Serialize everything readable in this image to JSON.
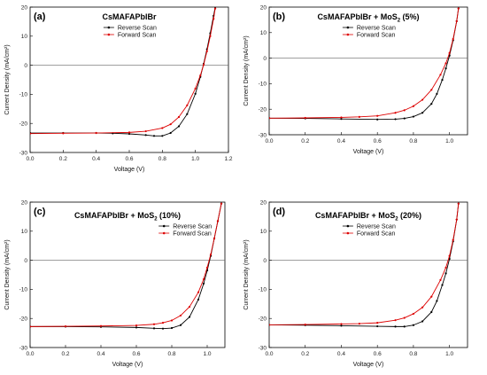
{
  "chart_data": [
    {
      "type": "line",
      "panel_label": "(a)",
      "title": "CsMAFAPbIBr",
      "title_sub": "",
      "title_suffix": "",
      "xlabel": "Voltage (V)",
      "ylabel": "Current Density (mA/cm²)",
      "xlim": [
        0.0,
        1.2
      ],
      "ylim": [
        -30,
        20
      ],
      "xticks": [
        "0.0",
        "0.2",
        "0.4",
        "0.6",
        "0.8",
        "1.0",
        "1.2"
      ],
      "yticks": [
        "-30",
        "-20",
        "-10",
        "0",
        "10",
        "20"
      ],
      "zero_line": true,
      "legend_position": "top-center",
      "series": [
        {
          "name": "Reverse Scan",
          "color": "#000000",
          "x": [
            0.0,
            0.2,
            0.4,
            0.5,
            0.6,
            0.7,
            0.75,
            0.8,
            0.85,
            0.9,
            0.95,
            1.0,
            1.03,
            1.05,
            1.07,
            1.09,
            1.11,
            1.12
          ],
          "y": [
            -23.3,
            -23.3,
            -23.3,
            -23.4,
            -23.6,
            -24.0,
            -24.3,
            -24.3,
            -23.3,
            -21.0,
            -16.8,
            -9.8,
            -4.0,
            0.5,
            5.5,
            11.0,
            17.0,
            20.0
          ]
        },
        {
          "name": "Forward Scan",
          "color": "#dd0000",
          "x": [
            0.0,
            0.2,
            0.4,
            0.6,
            0.7,
            0.8,
            0.85,
            0.9,
            0.95,
            1.0,
            1.03,
            1.05,
            1.07,
            1.09,
            1.11,
            1.12
          ],
          "y": [
            -23.5,
            -23.4,
            -23.3,
            -23.1,
            -22.7,
            -21.6,
            -20.3,
            -17.8,
            -13.8,
            -8.0,
            -3.5,
            0.2,
            4.8,
            10.0,
            16.0,
            19.5
          ]
        }
      ]
    },
    {
      "type": "line",
      "panel_label": "(b)",
      "title": "CsMAFAPbIBr + MoS",
      "title_sub": "2",
      "title_suffix": " (5%)",
      "xlabel": "Voltage (V)",
      "ylabel": "Current Density (mA/cm²)",
      "xlim": [
        0.0,
        1.1
      ],
      "ylim": [
        -30,
        20
      ],
      "xticks": [
        "0.0",
        "0.2",
        "0.4",
        "0.6",
        "0.8",
        "1.0"
      ],
      "yticks": [
        "-30",
        "-20",
        "-10",
        "0",
        "10",
        "20"
      ],
      "zero_line": true,
      "legend_position": "top-center",
      "series": [
        {
          "name": "Reverse Scan",
          "color": "#000000",
          "x": [
            0.0,
            0.2,
            0.4,
            0.6,
            0.7,
            0.75,
            0.8,
            0.85,
            0.9,
            0.93,
            0.96,
            0.98,
            1.0,
            1.02,
            1.04,
            1.05
          ],
          "y": [
            -23.5,
            -23.6,
            -23.8,
            -24.0,
            -23.9,
            -23.6,
            -22.9,
            -21.4,
            -17.9,
            -14.0,
            -8.5,
            -4.0,
            1.0,
            7.0,
            14.5,
            19.5
          ]
        },
        {
          "name": "Forward Scan",
          "color": "#dd0000",
          "x": [
            0.0,
            0.2,
            0.4,
            0.5,
            0.6,
            0.7,
            0.75,
            0.8,
            0.85,
            0.9,
            0.95,
            0.98,
            1.0,
            1.02,
            1.04,
            1.05
          ],
          "y": [
            -23.5,
            -23.4,
            -23.2,
            -23.0,
            -22.6,
            -21.4,
            -20.4,
            -18.8,
            -16.3,
            -12.4,
            -6.5,
            -2.0,
            2.0,
            7.5,
            14.5,
            19.5
          ]
        }
      ]
    },
    {
      "type": "line",
      "panel_label": "(c)",
      "title": "CsMAFAPbIBr + MoS",
      "title_sub": "2",
      "title_suffix": " (10%)",
      "xlabel": "Voltage (V)",
      "ylabel": "Current Density (mA/cm²)",
      "xlim": [
        0.0,
        1.1
      ],
      "ylim": [
        -30,
        20
      ],
      "xticks": [
        "0.0",
        "0.2",
        "0.4",
        "0.6",
        "0.8",
        "1.0"
      ],
      "yticks": [
        "-30",
        "-20",
        "-10",
        "0",
        "10",
        "20"
      ],
      "zero_line": true,
      "legend_position": "top-right",
      "series": [
        {
          "name": "Reverse Scan",
          "color": "#000000",
          "x": [
            0.0,
            0.2,
            0.4,
            0.6,
            0.7,
            0.75,
            0.8,
            0.85,
            0.9,
            0.95,
            0.98,
            1.0,
            1.02,
            1.04,
            1.06,
            1.08
          ],
          "y": [
            -22.8,
            -22.8,
            -22.9,
            -23.1,
            -23.4,
            -23.5,
            -23.3,
            -22.3,
            -19.5,
            -13.5,
            -8.0,
            -3.5,
            1.5,
            7.5,
            13.5,
            19.5
          ]
        },
        {
          "name": "Forward Scan",
          "color": "#dd0000",
          "x": [
            0.0,
            0.2,
            0.4,
            0.6,
            0.7,
            0.75,
            0.8,
            0.85,
            0.9,
            0.95,
            0.98,
            1.0,
            1.02,
            1.04,
            1.06,
            1.08
          ],
          "y": [
            -22.8,
            -22.7,
            -22.6,
            -22.4,
            -22.0,
            -21.5,
            -20.7,
            -19.0,
            -16.0,
            -11.0,
            -6.5,
            -2.5,
            2.0,
            7.5,
            13.5,
            19.5
          ]
        }
      ]
    },
    {
      "type": "line",
      "panel_label": "(d)",
      "title": "CsMAFAPbIBr + MoS",
      "title_sub": "2",
      "title_suffix": " (20%)",
      "xlabel": "Voltage (V)",
      "ylabel": "Current Density (mA/cm²)",
      "xlim": [
        0.0,
        1.1
      ],
      "ylim": [
        -30,
        20
      ],
      "xticks": [
        "0.0",
        "0.2",
        "0.4",
        "0.6",
        "0.8",
        "1.0"
      ],
      "yticks": [
        "-30",
        "-20",
        "-10",
        "0",
        "10",
        "20"
      ],
      "zero_line": true,
      "legend_position": "top-center",
      "series": [
        {
          "name": "Reverse Scan",
          "color": "#000000",
          "x": [
            0.0,
            0.2,
            0.4,
            0.6,
            0.7,
            0.75,
            0.8,
            0.85,
            0.9,
            0.93,
            0.96,
            0.98,
            1.0,
            1.02,
            1.04,
            1.05
          ],
          "y": [
            -22.2,
            -22.3,
            -22.5,
            -22.7,
            -22.8,
            -22.8,
            -22.3,
            -21.0,
            -17.8,
            -14.0,
            -8.5,
            -4.5,
            0.5,
            6.5,
            14.0,
            19.5
          ]
        },
        {
          "name": "Forward Scan",
          "color": "#dd0000",
          "x": [
            0.0,
            0.2,
            0.4,
            0.5,
            0.6,
            0.7,
            0.75,
            0.8,
            0.85,
            0.9,
            0.95,
            0.98,
            1.0,
            1.02,
            1.04,
            1.05
          ],
          "y": [
            -22.2,
            -22.1,
            -21.9,
            -21.8,
            -21.5,
            -20.6,
            -19.8,
            -18.4,
            -16.2,
            -12.5,
            -6.8,
            -2.5,
            1.5,
            7.0,
            14.0,
            19.5
          ]
        }
      ]
    }
  ]
}
